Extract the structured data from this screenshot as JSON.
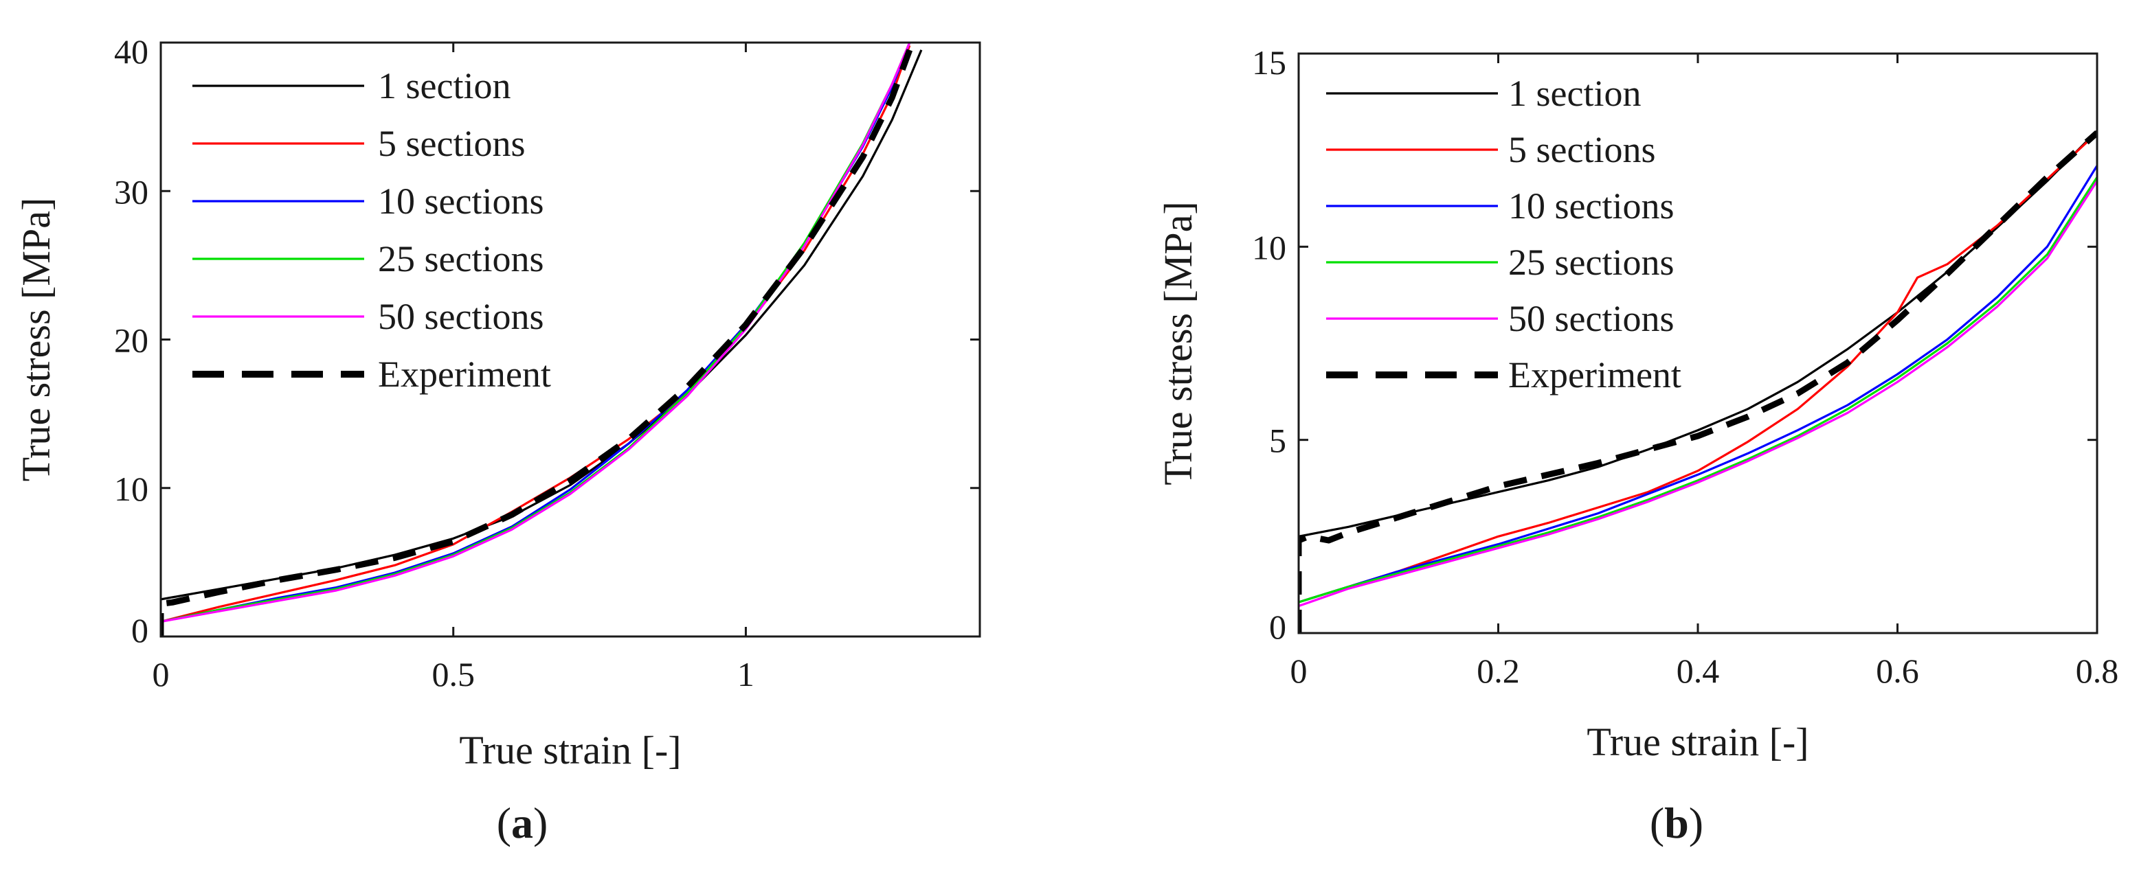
{
  "chart_data": [
    {
      "panel_label": "(a)",
      "panel_label_parts": [
        "(",
        "a",
        ")"
      ],
      "type": "line",
      "title": "",
      "xlabel": "True strain [-]",
      "ylabel": "True stress [MPa]",
      "xlim": [
        0,
        1.4
      ],
      "ylim": [
        0,
        40
      ],
      "xticks": [
        0,
        0.5,
        1
      ],
      "xtick_labels": [
        "0",
        "0.5",
        "1"
      ],
      "yticks": [
        0,
        10,
        20,
        30,
        40
      ],
      "ytick_labels": [
        "0",
        "10",
        "20",
        "30",
        "40"
      ],
      "grid": false,
      "legend_position": "top-left",
      "series": [
        {
          "name": "1 section",
          "color": "#000000",
          "style": "solid",
          "x": [
            0,
            0.1,
            0.2,
            0.3,
            0.4,
            0.5,
            0.6,
            0.7,
            0.8,
            0.9,
            1.0,
            1.1,
            1.2,
            1.25,
            1.3
          ],
          "y": [
            2.5,
            3.2,
            3.9,
            4.6,
            5.5,
            6.6,
            8.1,
            10.2,
            13.0,
            16.3,
            20.3,
            25.0,
            31.0,
            34.8,
            39.5
          ]
        },
        {
          "name": "5 sections",
          "color": "#ff0000",
          "style": "solid",
          "x": [
            0,
            0.1,
            0.2,
            0.3,
            0.4,
            0.5,
            0.6,
            0.7,
            0.8,
            0.9,
            1.0,
            1.1,
            1.2,
            1.25,
            1.28
          ],
          "y": [
            1.0,
            2.0,
            2.9,
            3.8,
            4.8,
            6.2,
            8.4,
            10.7,
            13.3,
            16.4,
            20.8,
            26.0,
            32.5,
            36.5,
            39.8
          ]
        },
        {
          "name": "10 sections",
          "color": "#0000ff",
          "style": "solid",
          "x": [
            0,
            0.1,
            0.2,
            0.3,
            0.4,
            0.5,
            0.6,
            0.7,
            0.8,
            0.9,
            1.0,
            1.1,
            1.2,
            1.25,
            1.28
          ],
          "y": [
            1.0,
            1.8,
            2.6,
            3.3,
            4.3,
            5.6,
            7.4,
            9.9,
            13.0,
            16.6,
            21.0,
            26.4,
            33.0,
            37.0,
            40.0
          ]
        },
        {
          "name": "25 sections",
          "color": "#00e000",
          "style": "solid",
          "x": [
            0,
            0.1,
            0.2,
            0.3,
            0.4,
            0.5,
            0.6,
            0.7,
            0.8,
            0.9,
            1.0,
            1.1,
            1.2,
            1.25,
            1.28
          ],
          "y": [
            1.0,
            1.8,
            2.5,
            3.2,
            4.2,
            5.5,
            7.3,
            9.7,
            12.7,
            16.4,
            20.9,
            26.5,
            33.2,
            37.2,
            40.0
          ]
        },
        {
          "name": "50 sections",
          "color": "#ff00ff",
          "style": "solid",
          "x": [
            0,
            0.1,
            0.2,
            0.3,
            0.4,
            0.5,
            0.6,
            0.7,
            0.8,
            0.9,
            1.0,
            1.1,
            1.2,
            1.25,
            1.28
          ],
          "y": [
            1.0,
            1.7,
            2.4,
            3.1,
            4.1,
            5.4,
            7.2,
            9.6,
            12.6,
            16.2,
            20.7,
            26.3,
            33.1,
            37.2,
            40.0
          ]
        },
        {
          "name": "Experiment",
          "color": "#000000",
          "style": "dashed",
          "x": [
            0,
            0,
            0.02,
            0.1,
            0.2,
            0.3,
            0.4,
            0.5,
            0.6,
            0.7,
            0.8,
            0.9,
            1.0,
            1.1,
            1.2,
            1.25,
            1.28
          ],
          "y": [
            0,
            2.2,
            2.3,
            3.0,
            3.8,
            4.5,
            5.3,
            6.4,
            8.2,
            10.5,
            13.3,
            16.8,
            21.0,
            26.2,
            32.3,
            36.3,
            39.5
          ]
        }
      ]
    },
    {
      "panel_label": "(b)",
      "panel_label_parts": [
        "(",
        "b",
        ")"
      ],
      "type": "line",
      "title": "",
      "xlabel": "True strain [-]",
      "ylabel": "True stress [MPa]",
      "xlim": [
        0,
        0.8
      ],
      "ylim": [
        0,
        15
      ],
      "xticks": [
        0,
        0.2,
        0.4,
        0.6,
        0.8
      ],
      "xtick_labels": [
        "0",
        "0.2",
        "0.4",
        "0.6",
        "0.8"
      ],
      "yticks": [
        0,
        5,
        10,
        15
      ],
      "ytick_labels": [
        "0",
        "5",
        "10",
        "15"
      ],
      "grid": false,
      "legend_position": "top-left",
      "series": [
        {
          "name": "1 section",
          "color": "#000000",
          "style": "solid",
          "x": [
            0,
            0.05,
            0.1,
            0.15,
            0.2,
            0.25,
            0.3,
            0.35,
            0.4,
            0.45,
            0.5,
            0.55,
            0.6,
            0.65,
            0.7,
            0.75,
            0.8
          ],
          "y": [
            2.5,
            2.75,
            3.05,
            3.35,
            3.65,
            3.95,
            4.3,
            4.75,
            5.25,
            5.8,
            6.5,
            7.35,
            8.3,
            9.35,
            10.5,
            11.7,
            13.0
          ]
        },
        {
          "name": "5 sections",
          "color": "#ff0000",
          "style": "solid",
          "x": [
            0,
            0.05,
            0.1,
            0.15,
            0.2,
            0.25,
            0.3,
            0.35,
            0.4,
            0.45,
            0.5,
            0.55,
            0.6,
            0.62,
            0.65,
            0.7,
            0.75,
            0.8
          ],
          "y": [
            0.8,
            1.2,
            1.6,
            2.05,
            2.5,
            2.85,
            3.25,
            3.65,
            4.2,
            4.95,
            5.8,
            6.9,
            8.3,
            9.2,
            9.55,
            10.55,
            11.75,
            12.95
          ]
        },
        {
          "name": "10 sections",
          "color": "#0000ff",
          "style": "solid",
          "x": [
            0,
            0.05,
            0.1,
            0.15,
            0.2,
            0.25,
            0.3,
            0.35,
            0.4,
            0.45,
            0.5,
            0.55,
            0.6,
            0.65,
            0.7,
            0.75,
            0.8
          ],
          "y": [
            0.8,
            1.2,
            1.6,
            1.95,
            2.3,
            2.7,
            3.1,
            3.6,
            4.1,
            4.65,
            5.25,
            5.9,
            6.7,
            7.6,
            8.7,
            10.0,
            12.1
          ]
        },
        {
          "name": "25 sections",
          "color": "#00e000",
          "style": "solid",
          "x": [
            0,
            0.05,
            0.1,
            0.15,
            0.2,
            0.25,
            0.3,
            0.35,
            0.4,
            0.45,
            0.5,
            0.55,
            0.6,
            0.65,
            0.7,
            0.75,
            0.8
          ],
          "y": [
            0.8,
            1.2,
            1.55,
            1.9,
            2.25,
            2.6,
            3.0,
            3.45,
            3.95,
            4.5,
            5.1,
            5.8,
            6.6,
            7.5,
            8.55,
            9.8,
            11.8
          ]
        },
        {
          "name": "50 sections",
          "color": "#ff00ff",
          "style": "solid",
          "x": [
            0,
            0.05,
            0.1,
            0.15,
            0.2,
            0.25,
            0.3,
            0.35,
            0.4,
            0.45,
            0.5,
            0.55,
            0.6,
            0.65,
            0.7,
            0.75,
            0.8
          ],
          "y": [
            0.7,
            1.15,
            1.5,
            1.85,
            2.2,
            2.55,
            2.95,
            3.4,
            3.9,
            4.45,
            5.05,
            5.7,
            6.5,
            7.4,
            8.45,
            9.7,
            11.7
          ]
        },
        {
          "name": "Experiment",
          "color": "#000000",
          "style": "dashed",
          "x": [
            0,
            0,
            0.01,
            0.03,
            0.05,
            0.1,
            0.15,
            0.2,
            0.25,
            0.3,
            0.35,
            0.4,
            0.45,
            0.5,
            0.55,
            0.6,
            0.65,
            0.7,
            0.75,
            0.8
          ],
          "y": [
            0,
            2.4,
            2.5,
            2.4,
            2.6,
            3.0,
            3.4,
            3.8,
            4.1,
            4.4,
            4.75,
            5.1,
            5.6,
            6.2,
            7.0,
            8.1,
            9.3,
            10.55,
            11.8,
            12.95
          ]
        }
      ]
    }
  ]
}
